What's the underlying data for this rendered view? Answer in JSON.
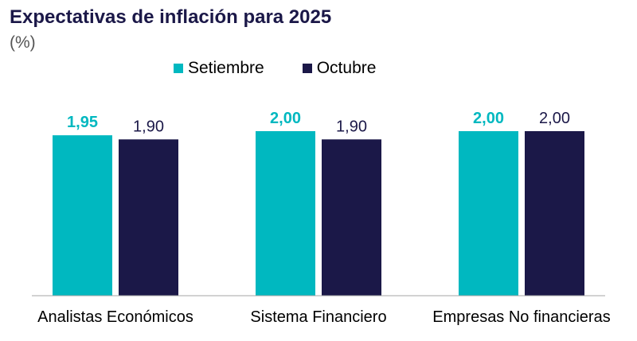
{
  "chart_data": {
    "type": "bar",
    "title": "Expectativas de inflación para 2025",
    "subtitle": "(%)",
    "categories": [
      "Analistas Económicos",
      "Sistema Financiero",
      "Empresas No financieras"
    ],
    "series": [
      {
        "name": "Setiembre",
        "values": [
          1.95,
          2.0,
          2.0
        ],
        "labels": [
          "1,95",
          "2,00",
          "2,00"
        ],
        "color": "#00b8c0",
        "label_color": "#00b8c0",
        "label_bold": true
      },
      {
        "name": "Octubre",
        "values": [
          1.9,
          1.9,
          2.0
        ],
        "labels": [
          "1,90",
          "1,90",
          "2,00"
        ],
        "color": "#1b1848",
        "label_color": "#1b1848",
        "label_bold": false
      }
    ],
    "ylim": [
      0,
      2.0
    ],
    "grid": false,
    "legend_position": "top"
  }
}
